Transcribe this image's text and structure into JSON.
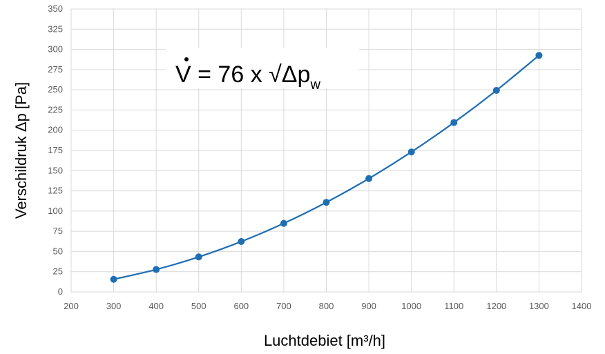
{
  "chart_data": {
    "type": "line",
    "title": "",
    "xlabel": "Luchtdebiet [m³/h]",
    "ylabel": "Verschildruk Δp [Pa]",
    "xlim": [
      200,
      1400
    ],
    "ylim": [
      0,
      350
    ],
    "x_ticks": [
      200,
      300,
      400,
      500,
      600,
      700,
      800,
      900,
      1000,
      1100,
      1200,
      1300,
      1400
    ],
    "y_ticks": [
      0,
      25,
      50,
      75,
      100,
      125,
      150,
      175,
      200,
      225,
      250,
      275,
      300,
      325,
      350
    ],
    "grid": true,
    "legend": "none",
    "series": [
      {
        "color": "#1f6eb4",
        "smooth": true,
        "markers": true,
        "x": [
          300,
          400,
          500,
          600,
          700,
          800,
          900,
          1000,
          1100,
          1200,
          1300
        ],
        "y": [
          15.6,
          27.7,
          43.3,
          62.3,
          84.8,
          110.8,
          140.2,
          173.1,
          209.5,
          249.3,
          292.6
        ]
      }
    ],
    "annotation": {
      "formula_lhs": "V",
      "formula_mid": " = 76 x √Δp",
      "formula_sub": "w"
    }
  }
}
